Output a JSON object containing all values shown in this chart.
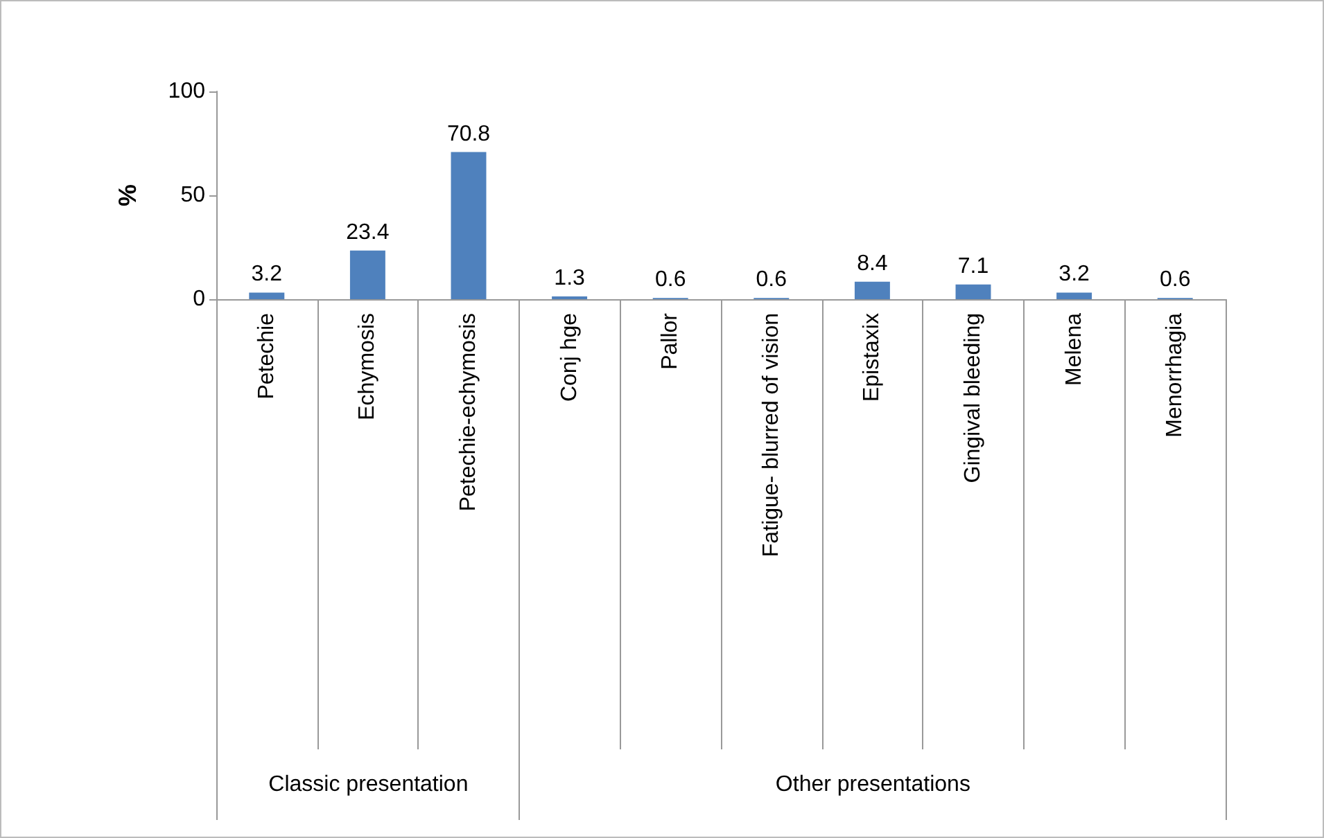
{
  "chart_data": {
    "type": "bar",
    "ylabel": "%",
    "categories": [
      "Petechie",
      "Echymosis",
      "Petechie-echymosis",
      "Conj hge",
      "Pallor",
      "Fatigue- blurred of vision",
      "Epistaxix",
      "Gingival bleeding",
      "Melena",
      "Menorrhagia"
    ],
    "values": [
      3.2,
      23.4,
      70.8,
      1.3,
      0.6,
      0.6,
      8.4,
      7.1,
      3.2,
      0.6
    ],
    "color": "#4f81bd",
    "ylim": [
      0,
      100
    ],
    "yticks": [
      0,
      50,
      100
    ],
    "grid": false,
    "data_labels": true,
    "annotations": [
      "Classic presentation",
      "Other presentations"
    ]
  }
}
